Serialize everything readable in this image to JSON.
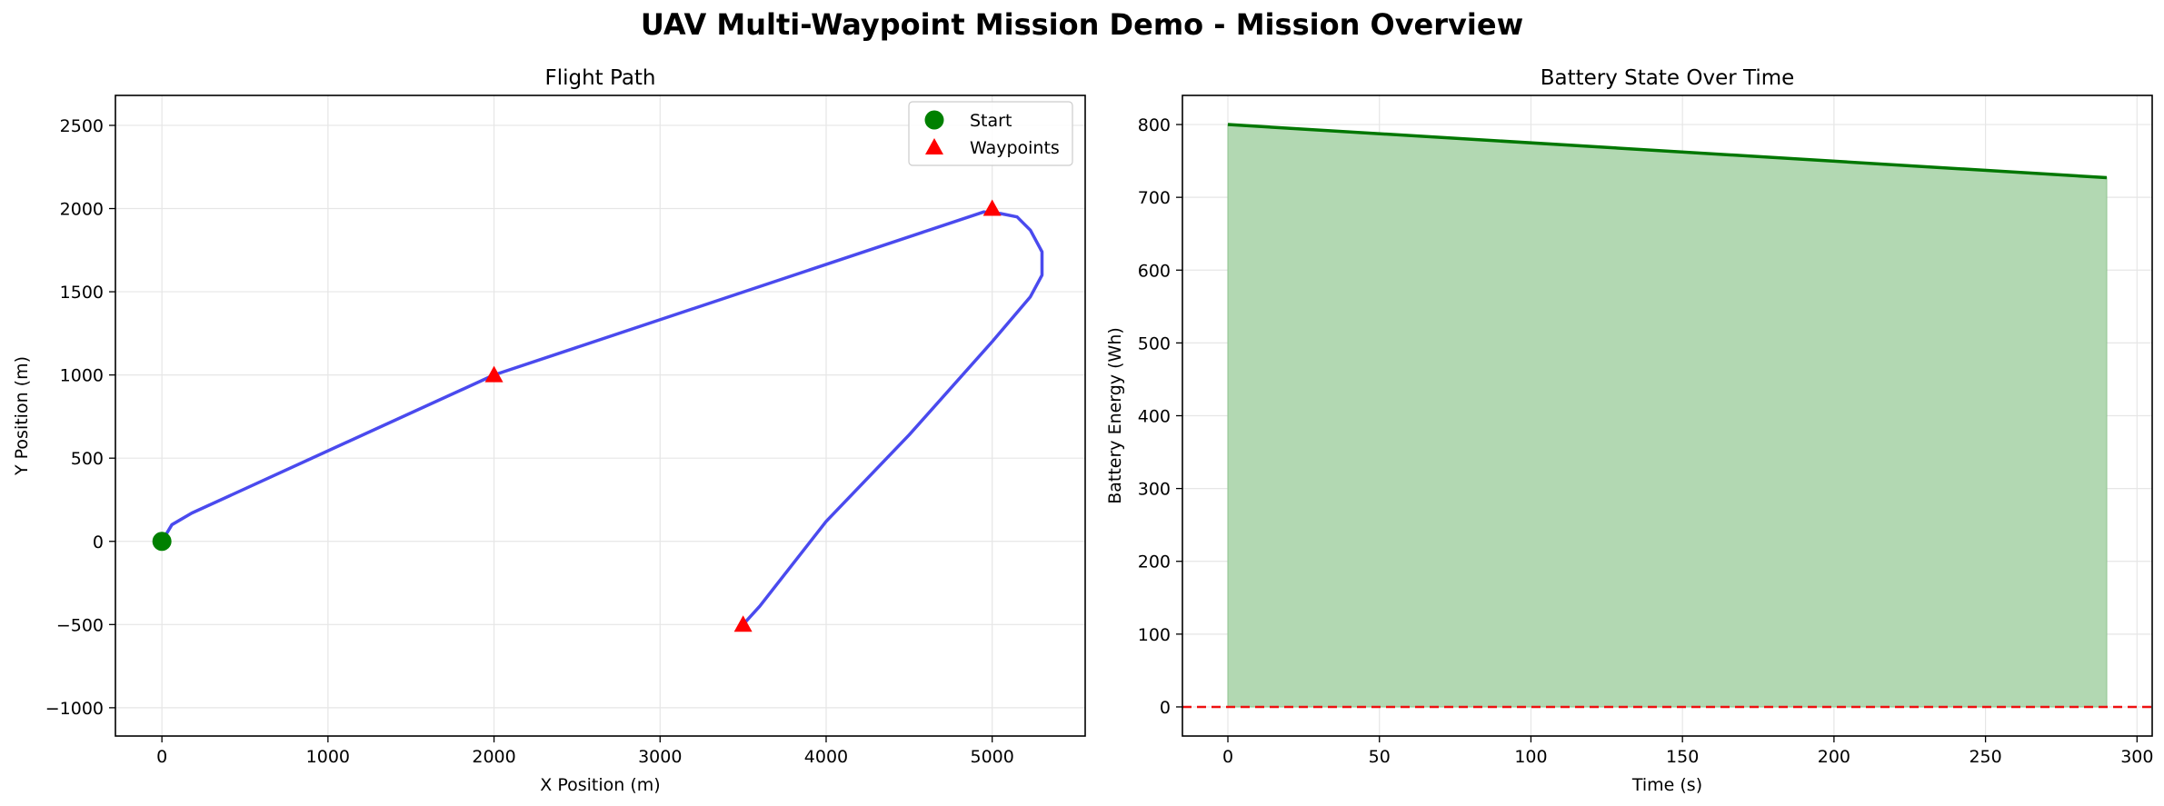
{
  "suptitle": "UAV Multi-Waypoint Mission Demo - Mission Overview",
  "chart_data": [
    {
      "type": "line",
      "title": "Flight Path",
      "xlabel": "X Position (m)",
      "ylabel": "Y Position (m)",
      "xlim": [
        -280,
        5560
      ],
      "ylim": [
        -1170,
        2680
      ],
      "xticks": [
        0,
        1000,
        2000,
        3000,
        4000,
        5000
      ],
      "yticks": [
        -1000,
        -500,
        0,
        500,
        1000,
        1500,
        2000,
        2500
      ],
      "xtick_labels": [
        "0",
        "1000",
        "2000",
        "3000",
        "4000",
        "5000"
      ],
      "ytick_labels": [
        "−1000",
        "−500",
        "0",
        "500",
        "1000",
        "1500",
        "2000",
        "2500"
      ],
      "grid": true,
      "legend": {
        "placement": "top-right",
        "entries": [
          {
            "label": "Start",
            "marker": "circle",
            "color": "#008000"
          },
          {
            "label": "Waypoints",
            "marker": "triangle",
            "color": "#ff0000"
          }
        ]
      },
      "path": {
        "color": "#4a4aee",
        "points": [
          [
            0,
            0
          ],
          [
            60,
            100
          ],
          [
            180,
            170
          ],
          [
            2000,
            1000
          ],
          [
            4950,
            1980
          ],
          [
            5050,
            1970
          ],
          [
            5150,
            1950
          ],
          [
            5230,
            1870
          ],
          [
            5300,
            1740
          ],
          [
            5300,
            1600
          ],
          [
            5230,
            1470
          ],
          [
            5000,
            1200
          ],
          [
            4500,
            640
          ],
          [
            4000,
            120
          ],
          [
            3600,
            -390
          ],
          [
            3500,
            -500
          ]
        ]
      },
      "start": {
        "x": 0,
        "y": 0,
        "color": "#008000"
      },
      "waypoints": {
        "color": "#ff0000",
        "points": [
          [
            2000,
            1000
          ],
          [
            5000,
            2000
          ],
          [
            3500,
            -500
          ]
        ]
      }
    },
    {
      "type": "area",
      "title": "Battery State Over Time",
      "xlabel": "Time (s)",
      "ylabel": "Battery Energy (Wh)",
      "xlim": [
        -15,
        305
      ],
      "ylim": [
        -40,
        840
      ],
      "xticks": [
        0,
        50,
        100,
        150,
        200,
        250,
        300
      ],
      "yticks": [
        0,
        100,
        200,
        300,
        400,
        500,
        600,
        700,
        800
      ],
      "xtick_labels": [
        "0",
        "50",
        "100",
        "150",
        "200",
        "250",
        "300"
      ],
      "ytick_labels": [
        "0",
        "100",
        "200",
        "300",
        "400",
        "500",
        "600",
        "700",
        "800"
      ],
      "grid": true,
      "series": {
        "line_color": "#007700",
        "fill_color": "#b2d8b2",
        "x": [
          0,
          290
        ],
        "y": [
          800,
          727
        ]
      },
      "reference_line": {
        "y": 0,
        "color": "#ee1111",
        "style": "dashed"
      }
    }
  ]
}
